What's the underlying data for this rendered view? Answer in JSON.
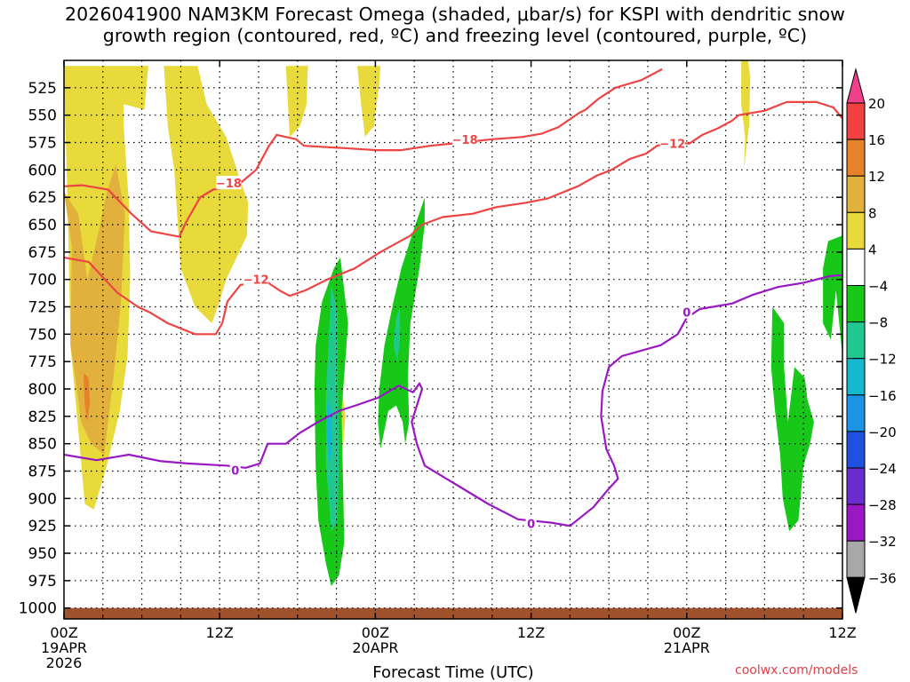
{
  "title_line1": "2026041900 NAM3KM Forecast Omega (shaded, μbar/s) for KSPI with dendritic snow",
  "title_line2": "growth region (contoured, red, ºC) and freezing level (contoured, purple, ºC)",
  "credit": "coolwx.com/models",
  "chart_data": {
    "type": "heatmap",
    "title": "2026041900 NAM3KM Forecast Omega (shaded, μbar/s) for KSPI with dendritic snow growth region (contoured, red, ºC) and freezing level (contoured, purple, ºC)",
    "xlabel": "Forecast Time (UTC)",
    "ylabel": "",
    "xlim_hours": [
      0,
      60
    ],
    "ylim_hPa": [
      1010,
      500
    ],
    "y_inverted": true,
    "grid": true,
    "x_ticks": [
      {
        "h": 0,
        "label": "00Z",
        "sub1": "19APR",
        "sub2": "2026"
      },
      {
        "h": 12,
        "label": "12Z",
        "sub1": "",
        "sub2": ""
      },
      {
        "h": 24,
        "label": "00Z",
        "sub1": "20APR",
        "sub2": ""
      },
      {
        "h": 36,
        "label": "12Z",
        "sub1": "",
        "sub2": ""
      },
      {
        "h": 48,
        "label": "00Z",
        "sub1": "21APR",
        "sub2": ""
      },
      {
        "h": 60,
        "label": "12Z",
        "sub1": "",
        "sub2": ""
      }
    ],
    "y_ticks": [
      525,
      550,
      575,
      600,
      625,
      650,
      675,
      700,
      725,
      750,
      775,
      800,
      825,
      850,
      875,
      900,
      925,
      950,
      975,
      1000
    ],
    "colorbar": {
      "labels": [
        "20",
        "16",
        "12",
        "8",
        "4",
        "-4",
        "-8",
        "-12",
        "-16",
        "-20",
        "-24",
        "-28",
        "-32",
        "-36"
      ],
      "colors": [
        "#f0408a",
        "#f04040",
        "#e6822a",
        "#e2b03c",
        "#e7da3a",
        "#ffffff",
        "#18c818",
        "#20c890",
        "#16b8d0",
        "#1c94e6",
        "#2050e0",
        "#6a2ccc",
        "#9a18c4",
        "#a8a8a8",
        "#000000"
      ]
    },
    "omega_regions": [
      {
        "name": "positive-early-4to8",
        "level": 4,
        "color": "#e7da3a",
        "points": [
          [
            0,
            515
          ],
          [
            0.3,
            640
          ],
          [
            0.5,
            760
          ],
          [
            1.2,
            850
          ],
          [
            1.6,
            905
          ],
          [
            2.3,
            910
          ],
          [
            3.3,
            870
          ],
          [
            4.3,
            820
          ],
          [
            4.9,
            770
          ],
          [
            5.1,
            700
          ],
          [
            5.0,
            630
          ],
          [
            4.6,
            560
          ],
          [
            4.6,
            540
          ],
          [
            6.2,
            545
          ],
          [
            6.5,
            505
          ],
          [
            0,
            505
          ]
        ]
      },
      {
        "name": "positive-early-8to12",
        "level": 8,
        "color": "#e2b03c",
        "points": [
          [
            0,
            620
          ],
          [
            0.6,
            670
          ],
          [
            0.5,
            760
          ],
          [
            1.0,
            800
          ],
          [
            1.3,
            830
          ],
          [
            2.1,
            850
          ],
          [
            3.1,
            860
          ],
          [
            3.9,
            780
          ],
          [
            4.4,
            720
          ],
          [
            4.7,
            640
          ],
          [
            4.0,
            595
          ],
          [
            3.3,
            620
          ],
          [
            2.6,
            660
          ],
          [
            1.8,
            700
          ],
          [
            1.1,
            640
          ]
        ]
      },
      {
        "name": "positive-early-12to16",
        "level": 12,
        "color": "#e6822a",
        "points": [
          [
            1.5,
            785
          ],
          [
            1.9,
            790
          ],
          [
            2.0,
            812
          ],
          [
            1.8,
            830
          ],
          [
            1.6,
            815
          ]
        ]
      },
      {
        "name": "positive-10z",
        "level": 4,
        "color": "#e7da3a",
        "points": [
          [
            7.7,
            505
          ],
          [
            8.0,
            560
          ],
          [
            8.5,
            600
          ],
          [
            9.0,
            690
          ],
          [
            10.1,
            725
          ],
          [
            11.4,
            740
          ],
          [
            12.0,
            720
          ],
          [
            12.5,
            700
          ],
          [
            13.3,
            680
          ],
          [
            14.1,
            660
          ],
          [
            14.2,
            630
          ],
          [
            13.6,
            610
          ],
          [
            12.5,
            570
          ],
          [
            11.0,
            540
          ],
          [
            10.3,
            505
          ]
        ]
      },
      {
        "name": "positive-17z",
        "level": 4,
        "color": "#e7da3a",
        "points": [
          [
            17.1,
            505
          ],
          [
            17.4,
            570
          ],
          [
            18.2,
            560
          ],
          [
            18.7,
            540
          ],
          [
            18.8,
            505
          ]
        ]
      },
      {
        "name": "positive-22z",
        "level": 4,
        "color": "#e7da3a",
        "points": [
          [
            22.6,
            505
          ],
          [
            22.9,
            540
          ],
          [
            23.2,
            570
          ],
          [
            23.9,
            560
          ],
          [
            24.3,
            520
          ],
          [
            24.4,
            505
          ]
        ]
      },
      {
        "name": "positive-53z",
        "level": 4,
        "color": "#e7da3a",
        "points": [
          [
            52.2,
            500
          ],
          [
            52.2,
            540
          ],
          [
            52.5,
            570
          ],
          [
            52.4,
            600
          ],
          [
            52.8,
            560
          ],
          [
            52.9,
            515
          ],
          [
            52.6,
            490
          ]
        ]
      },
      {
        "name": "positive-21z-small",
        "level": 4,
        "color": "#e7da3a",
        "points": [
          [
            21.0,
            800
          ],
          [
            21.3,
            830
          ],
          [
            21.5,
            855
          ],
          [
            21.7,
            825
          ],
          [
            21.3,
            790
          ]
        ]
      },
      {
        "name": "negative-19z",
        "level": -4,
        "color": "#18c818",
        "points": [
          [
            20.8,
            690
          ],
          [
            19.9,
            720
          ],
          [
            19.4,
            760
          ],
          [
            19.3,
            800
          ],
          [
            19.4,
            870
          ],
          [
            19.6,
            920
          ],
          [
            20.2,
            960
          ],
          [
            20.6,
            980
          ],
          [
            21.2,
            970
          ],
          [
            21.6,
            940
          ],
          [
            21.5,
            880
          ],
          [
            21.4,
            820
          ],
          [
            21.9,
            740
          ],
          [
            21.3,
            680
          ]
        ]
      },
      {
        "name": "negative-19z-core",
        "level": -8,
        "color": "#20c890",
        "points": [
          [
            20.6,
            705
          ],
          [
            20.4,
            760
          ],
          [
            20.2,
            800
          ],
          [
            20.2,
            870
          ],
          [
            20.6,
            930
          ],
          [
            21.1,
            920
          ],
          [
            21.2,
            860
          ],
          [
            21.1,
            790
          ],
          [
            21.1,
            730
          ]
        ]
      },
      {
        "name": "negative-19z-deep",
        "level": -12,
        "color": "#16b8d0",
        "points": [
          [
            20.3,
            810
          ],
          [
            20.2,
            840
          ],
          [
            20.5,
            870
          ],
          [
            20.7,
            850
          ],
          [
            20.6,
            820
          ]
        ]
      },
      {
        "name": "negative-26z",
        "level": -4,
        "color": "#18c818",
        "points": [
          [
            27.8,
            625
          ],
          [
            26.8,
            660
          ],
          [
            26.0,
            690
          ],
          [
            25.4,
            720
          ],
          [
            24.7,
            760
          ],
          [
            24.3,
            800
          ],
          [
            24.2,
            830
          ],
          [
            24.4,
            855
          ],
          [
            25.0,
            820
          ],
          [
            25.6,
            815
          ],
          [
            26.1,
            830
          ],
          [
            26.3,
            850
          ],
          [
            26.6,
            830
          ],
          [
            26.5,
            790
          ],
          [
            26.7,
            740
          ],
          [
            27.4,
            690
          ],
          [
            27.8,
            650
          ]
        ]
      },
      {
        "name": "negative-26z-core",
        "level": -8,
        "color": "#20c890",
        "points": [
          [
            25.6,
            735
          ],
          [
            25.4,
            760
          ],
          [
            25.7,
            775
          ],
          [
            25.9,
            755
          ],
          [
            25.9,
            725
          ]
        ]
      },
      {
        "name": "negative-55z",
        "level": -4,
        "color": "#18c818",
        "points": [
          [
            54.6,
            725
          ],
          [
            54.5,
            780
          ],
          [
            54.8,
            820
          ],
          [
            55.2,
            860
          ],
          [
            55.4,
            900
          ],
          [
            55.9,
            930
          ],
          [
            56.6,
            920
          ],
          [
            57.0,
            870
          ],
          [
            57.5,
            850
          ],
          [
            57.8,
            830
          ],
          [
            57.3,
            810
          ],
          [
            57.1,
            790
          ],
          [
            56.3,
            780
          ],
          [
            55.8,
            830
          ],
          [
            55.5,
            780
          ],
          [
            55.5,
            740
          ]
        ]
      },
      {
        "name": "negative-60z",
        "level": -4,
        "color": "#18c818",
        "points": [
          [
            60,
            660
          ],
          [
            58.9,
            665
          ],
          [
            58.5,
            690
          ],
          [
            58.5,
            740
          ],
          [
            59.1,
            755
          ],
          [
            59.5,
            710
          ],
          [
            60,
            770
          ]
        ]
      }
    ],
    "red_contours": [
      {
        "label": "-18",
        "label_at": [
          12.7,
          612
        ],
        "points": [
          [
            0,
            615
          ],
          [
            1.4,
            614
          ],
          [
            3.4,
            618
          ],
          [
            5.2,
            640
          ],
          [
            6.7,
            656
          ],
          [
            8.9,
            661
          ],
          [
            9.4,
            648
          ],
          [
            10.5,
            625
          ],
          [
            11.5,
            618
          ],
          [
            13.4,
            614
          ],
          [
            14.8,
            600
          ],
          [
            15.8,
            578
          ],
          [
            16.4,
            568
          ],
          [
            17.9,
            572
          ],
          [
            18.5,
            578
          ],
          [
            21.5,
            580
          ],
          [
            24.1,
            582
          ],
          [
            26.0,
            582
          ],
          [
            28.2,
            578
          ],
          [
            30.7,
            575
          ],
          [
            33.0,
            572
          ],
          [
            35.3,
            570
          ],
          [
            36.8,
            567
          ],
          [
            38.1,
            561
          ],
          [
            39.7,
            548
          ],
          [
            40.2,
            545
          ],
          [
            41.2,
            535
          ],
          [
            42.5,
            525
          ],
          [
            44.5,
            518
          ],
          [
            46.1,
            508
          ]
        ]
      },
      {
        "label": "-12",
        "label_at": [
          14.8,
          700
        ],
        "points": [
          [
            0,
            680
          ],
          [
            1.9,
            684
          ],
          [
            3.0,
            698
          ],
          [
            4.1,
            712
          ],
          [
            5.7,
            725
          ],
          [
            6.6,
            730
          ],
          [
            8.0,
            740
          ],
          [
            10.1,
            750
          ],
          [
            11.7,
            750
          ],
          [
            12.2,
            740
          ],
          [
            12.6,
            720
          ],
          [
            13.6,
            705
          ],
          [
            15.6,
            702
          ],
          [
            16.6,
            710
          ],
          [
            17.4,
            715
          ],
          [
            18.6,
            710
          ],
          [
            20.3,
            700
          ],
          [
            22.4,
            690
          ],
          [
            24.4,
            675
          ],
          [
            26.7,
            660
          ],
          [
            27.6,
            650
          ],
          [
            29.2,
            643
          ],
          [
            31.5,
            640
          ],
          [
            33.3,
            634
          ],
          [
            35.6,
            630
          ],
          [
            37.3,
            626
          ],
          [
            39.6,
            615
          ],
          [
            41.1,
            605
          ],
          [
            42.2,
            600
          ],
          [
            43.6,
            590
          ],
          [
            44.9,
            585
          ],
          [
            45.7,
            578
          ],
          [
            46.8,
            575
          ],
          [
            48.2,
            576
          ],
          [
            49.2,
            568
          ],
          [
            50.4,
            562
          ],
          [
            51.5,
            555
          ],
          [
            52.0,
            550
          ],
          [
            54.0,
            546
          ],
          [
            55.7,
            538
          ],
          [
            58.0,
            538
          ],
          [
            59.3,
            543
          ],
          [
            60,
            553
          ]
        ]
      }
    ],
    "purple_contour": {
      "label": "0",
      "label_positions": [
        [
          13.2,
          874
        ],
        [
          36.0,
          923
        ],
        [
          48.0,
          730
        ]
      ],
      "points": [
        [
          0,
          860
        ],
        [
          2.5,
          865
        ],
        [
          5.0,
          860
        ],
        [
          7.5,
          866
        ],
        [
          9.5,
          868
        ],
        [
          12.5,
          870
        ],
        [
          14.0,
          872
        ],
        [
          15.1,
          868
        ],
        [
          15.7,
          850
        ],
        [
          17.1,
          850
        ],
        [
          18.2,
          840
        ],
        [
          19.6,
          830
        ],
        [
          21.2,
          820
        ],
        [
          22.5,
          815
        ],
        [
          24.2,
          808
        ],
        [
          25.8,
          797
        ],
        [
          26.9,
          803
        ],
        [
          27.4,
          795
        ],
        [
          27.6,
          800
        ],
        [
          26.8,
          830
        ],
        [
          27.2,
          850
        ],
        [
          27.8,
          870
        ],
        [
          29.2,
          880
        ],
        [
          30.6,
          890
        ],
        [
          32.7,
          905
        ],
        [
          35.0,
          919
        ],
        [
          37.5,
          922
        ],
        [
          39.0,
          925
        ],
        [
          40.8,
          908
        ],
        [
          42.0,
          891
        ],
        [
          42.7,
          882
        ],
        [
          42.4,
          870
        ],
        [
          41.8,
          855
        ],
        [
          41.4,
          825
        ],
        [
          41.5,
          802
        ],
        [
          42.0,
          780
        ],
        [
          43.0,
          770
        ],
        [
          44.5,
          765
        ],
        [
          46.0,
          760
        ],
        [
          47.3,
          750
        ],
        [
          48.0,
          735
        ],
        [
          49.0,
          727
        ],
        [
          51.5,
          722
        ],
        [
          53.1,
          714
        ],
        [
          55.0,
          707
        ],
        [
          57.0,
          703
        ],
        [
          59.0,
          697
        ],
        [
          60,
          696
        ]
      ]
    }
  }
}
